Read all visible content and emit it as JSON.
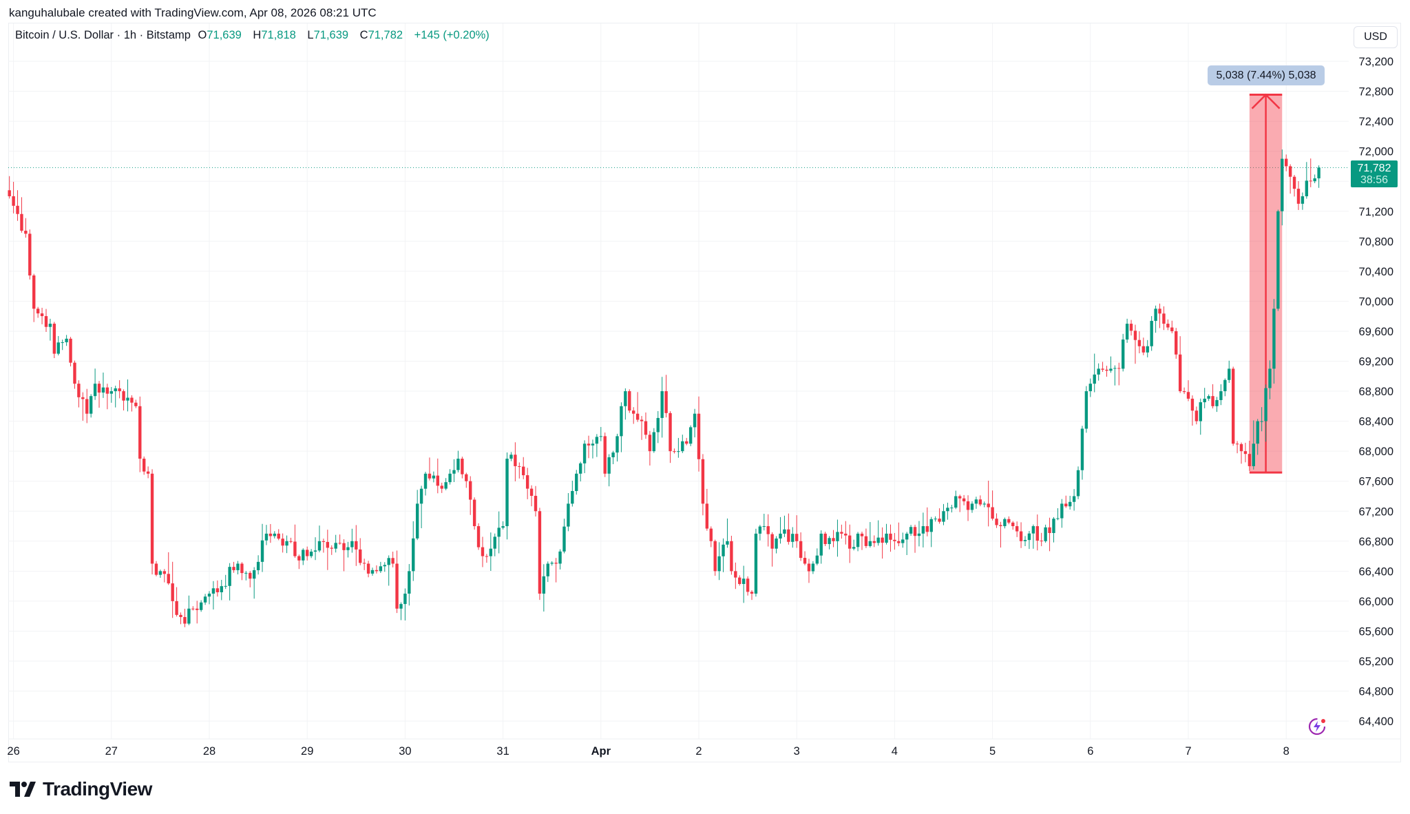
{
  "credit": "kanguhalubale created with TradingView.com, Apr 08, 2026 08:21 UTC",
  "legend": {
    "symbol": "Bitcoin / U.S. Dollar · 1h · Bitstamp",
    "o_label": "O",
    "o": "71,639",
    "h_label": "H",
    "h": "71,818",
    "l_label": "L",
    "l": "71,639",
    "c_label": "C",
    "c": "71,782",
    "change": "+145 (+0.20%)"
  },
  "currency": "USD",
  "price_tag": {
    "price": "71,782",
    "countdown": "38:56"
  },
  "measure": {
    "label": "5,038 (7.44%) 5,038",
    "from": 67716,
    "to": 72754,
    "start": "Apr 07 15:00",
    "end": "Apr 07 23:00",
    "color": "#f23645"
  },
  "logo": "TradingView",
  "colors": {
    "up": "#089981",
    "down": "#f23645",
    "grid": "#f2f3f5"
  },
  "chart_data": {
    "type": "candlestick",
    "symbol": "BTCUSD",
    "interval": "1h",
    "ylim": [
      64200,
      73400
    ],
    "grid": true,
    "y_ticks": [
      "73,200",
      "72,800",
      "72,400",
      "72,000",
      "71,600",
      "71,200",
      "70,800",
      "70,400",
      "70,000",
      "69,600",
      "69,200",
      "68,800",
      "68,400",
      "68,000",
      "67,600",
      "67,200",
      "66,800",
      "66,400",
      "66,000",
      "65,600",
      "65,200",
      "64,800",
      "64,400"
    ],
    "x_ticks": [
      "26",
      "27",
      "28",
      "29",
      "30",
      "31",
      "Apr",
      "2",
      "3",
      "4",
      "5",
      "6",
      "7",
      "8"
    ],
    "last_price": 71782,
    "close_path": [
      [
        "Mar 25 23:00",
        71400
      ],
      [
        "Mar 26 03:00",
        70900
      ],
      [
        "Mar 26 05:00",
        69900
      ],
      [
        "Mar 26 09:00",
        69700
      ],
      [
        "Mar 26 10:00",
        69300
      ],
      [
        "Mar 26 13:00",
        69500
      ],
      [
        "Mar 26 15:00",
        68900
      ],
      [
        "Mar 26 18:00",
        68500
      ],
      [
        "Mar 26 20:00",
        68900
      ],
      [
        "Mar 27 00:00",
        68800
      ],
      [
        "Mar 27 02:00",
        68800
      ],
      [
        "Mar 27 06:00",
        68600
      ],
      [
        "Mar 27 07:00",
        67900
      ],
      [
        "Mar 27 09:00",
        67700
      ],
      [
        "Mar 27 10:00",
        66500
      ],
      [
        "Mar 27 12:00",
        66400
      ],
      [
        "Mar 27 15:00",
        66000
      ],
      [
        "Mar 27 18:00",
        65700
      ],
      [
        "Mar 27 20:00",
        65900
      ],
      [
        "Mar 28 00:00",
        66100
      ],
      [
        "Mar 28 03:00",
        66200
      ],
      [
        "Mar 28 07:00",
        66500
      ],
      [
        "Mar 28 10:00",
        66300
      ],
      [
        "Mar 28 14:00",
        66900
      ],
      [
        "Mar 28 16:00",
        66900
      ],
      [
        "Mar 28 19:00",
        66800
      ],
      [
        "Mar 28 21:00",
        66600
      ],
      [
        "Mar 29 00:00",
        66600
      ],
      [
        "Mar 29 03:00",
        66800
      ],
      [
        "Mar 29 06:00",
        66700
      ],
      [
        "Mar 29 11:00",
        66800
      ],
      [
        "Mar 29 14:00",
        66500
      ],
      [
        "Mar 29 17:00",
        66400
      ],
      [
        "Mar 29 21:00",
        66500
      ],
      [
        "Mar 29 22:00",
        65900
      ],
      [
        "Mar 30 00:00",
        66100
      ],
      [
        "Mar 30 01:00",
        66400
      ],
      [
        "Mar 30 03:00",
        67300
      ],
      [
        "Mar 30 05:00",
        67700
      ],
      [
        "Mar 30 09:00",
        67500
      ],
      [
        "Mar 30 11:00",
        67700
      ],
      [
        "Mar 30 13:00",
        67900
      ],
      [
        "Mar 30 15:00",
        67600
      ],
      [
        "Mar 30 17:00",
        67000
      ],
      [
        "Mar 30 19:00",
        66600
      ],
      [
        "Mar 30 21:00",
        66700
      ],
      [
        "Mar 31 00:00",
        67000
      ],
      [
        "Mar 31 01:00",
        67900
      ],
      [
        "Mar 31 03:00",
        67800
      ],
      [
        "Mar 31 06:00",
        67500
      ],
      [
        "Mar 31 08:00",
        67200
      ],
      [
        "Mar 31 09:00",
        66100
      ],
      [
        "Mar 31 11:00",
        66500
      ],
      [
        "Mar 31 13:00",
        66500
      ],
      [
        "Mar 31 16:00",
        67300
      ],
      [
        "Mar 31 18:00",
        67700
      ],
      [
        "Mar 31 20:00",
        68100
      ],
      [
        "Mar 31 22:00",
        68100
      ],
      [
        "Apr 01 00:00",
        68200
      ],
      [
        "Apr 01 01:00",
        67700
      ],
      [
        "Apr 01 04:00",
        68200
      ],
      [
        "Apr 01 06:00",
        68800
      ],
      [
        "Apr 01 08:00",
        68500
      ],
      [
        "Apr 01 10:00",
        68400
      ],
      [
        "Apr 01 12:00",
        68000
      ],
      [
        "Apr 01 15:00",
        68800
      ],
      [
        "Apr 01 17:00",
        68000
      ],
      [
        "Apr 01 19:00",
        68000
      ],
      [
        "Apr 01 21:00",
        68100
      ],
      [
        "Apr 01 23:00",
        68500
      ],
      [
        "Apr 02 01:00",
        67300
      ],
      [
        "Apr 02 03:00",
        66800
      ],
      [
        "Apr 02 04:00",
        66400
      ],
      [
        "Apr 02 07:00",
        66800
      ],
      [
        "Apr 02 08:00",
        66400
      ],
      [
        "Apr 02 11:00",
        66300
      ],
      [
        "Apr 02 13:00",
        66100
      ],
      [
        "Apr 02 14:00",
        66900
      ],
      [
        "Apr 02 16:00",
        67000
      ],
      [
        "Apr 02 18:00",
        66700
      ],
      [
        "Apr 02 20:00",
        66900
      ],
      [
        "Apr 03 00:00",
        66800
      ],
      [
        "Apr 03 02:00",
        66500
      ],
      [
        "Apr 03 04:00",
        66500
      ],
      [
        "Apr 03 06:00",
        66900
      ],
      [
        "Apr 03 09:00",
        66800
      ],
      [
        "Apr 03 11:00",
        66900
      ],
      [
        "Apr 03 13:00",
        66700
      ],
      [
        "Apr 03 15:00",
        66900
      ],
      [
        "Apr 03 18:00",
        66800
      ],
      [
        "Apr 03 22:00",
        66900
      ],
      [
        "Apr 04 00:00",
        66800
      ],
      [
        "Apr 04 03:00",
        66900
      ],
      [
        "Apr 04 07:00",
        67000
      ],
      [
        "Apr 04 10:00",
        67100
      ],
      [
        "Apr 04 12:00",
        67200
      ],
      [
        "Apr 04 15:00",
        67400
      ],
      [
        "Apr 04 19:00",
        67300
      ],
      [
        "Apr 04 22:00",
        67300
      ],
      [
        "Apr 05 00:00",
        67100
      ],
      [
        "Apr 05 02:00",
        67000
      ],
      [
        "Apr 05 05:00",
        67000
      ],
      [
        "Apr 05 07:00",
        66800
      ],
      [
        "Apr 05 10:00",
        67000
      ],
      [
        "Apr 05 12:00",
        66800
      ],
      [
        "Apr 05 15:00",
        67100
      ],
      [
        "Apr 05 17:00",
        67300
      ],
      [
        "Apr 05 20:00",
        67400
      ],
      [
        "Apr 05 22:00",
        68300
      ],
      [
        "Apr 05 23:00",
        68800
      ],
      [
        "Apr 06 00:00",
        68900
      ],
      [
        "Apr 06 02:00",
        69100
      ],
      [
        "Apr 06 05:00",
        69100
      ],
      [
        "Apr 06 07:00",
        69100
      ],
      [
        "Apr 06 09:00",
        69700
      ],
      [
        "Apr 06 12:00",
        69400
      ],
      [
        "Apr 06 14:00",
        69400
      ],
      [
        "Apr 06 16:00",
        69900
      ],
      [
        "Apr 06 18:00",
        69700
      ],
      [
        "Apr 06 20:00",
        69600
      ],
      [
        "Apr 06 22:00",
        68800
      ],
      [
        "Apr 07 00:00",
        68700
      ],
      [
        "Apr 07 02:00",
        68400
      ],
      [
        "Apr 07 04:00",
        68700
      ],
      [
        "Apr 07 06:00",
        68600
      ],
      [
        "Apr 07 08:00",
        68800
      ],
      [
        "Apr 07 10:00",
        69100
      ],
      [
        "Apr 07 11:00",
        68100
      ],
      [
        "Apr 07 13:00",
        68000
      ],
      [
        "Apr 07 15:00",
        67800
      ],
      [
        "Apr 07 16:00",
        68100
      ],
      [
        "Apr 07 17:00",
        68400
      ],
      [
        "Apr 07 18:00",
        68400
      ],
      [
        "Apr 07 20:00",
        69100
      ],
      [
        "Apr 07 21:00",
        69900
      ],
      [
        "Apr 07 22:00",
        71200
      ],
      [
        "Apr 07 23:00",
        71900
      ],
      [
        "Apr 08 00:00",
        71800
      ],
      [
        "Apr 08 02:00",
        71500
      ],
      [
        "Apr 08 03:00",
        71300
      ],
      [
        "Apr 08 04:00",
        71400
      ],
      [
        "Apr 08 06:00",
        71600
      ],
      [
        "Apr 08 07:00",
        71639
      ],
      [
        "Apr 08 08:00",
        71782
      ]
    ]
  }
}
